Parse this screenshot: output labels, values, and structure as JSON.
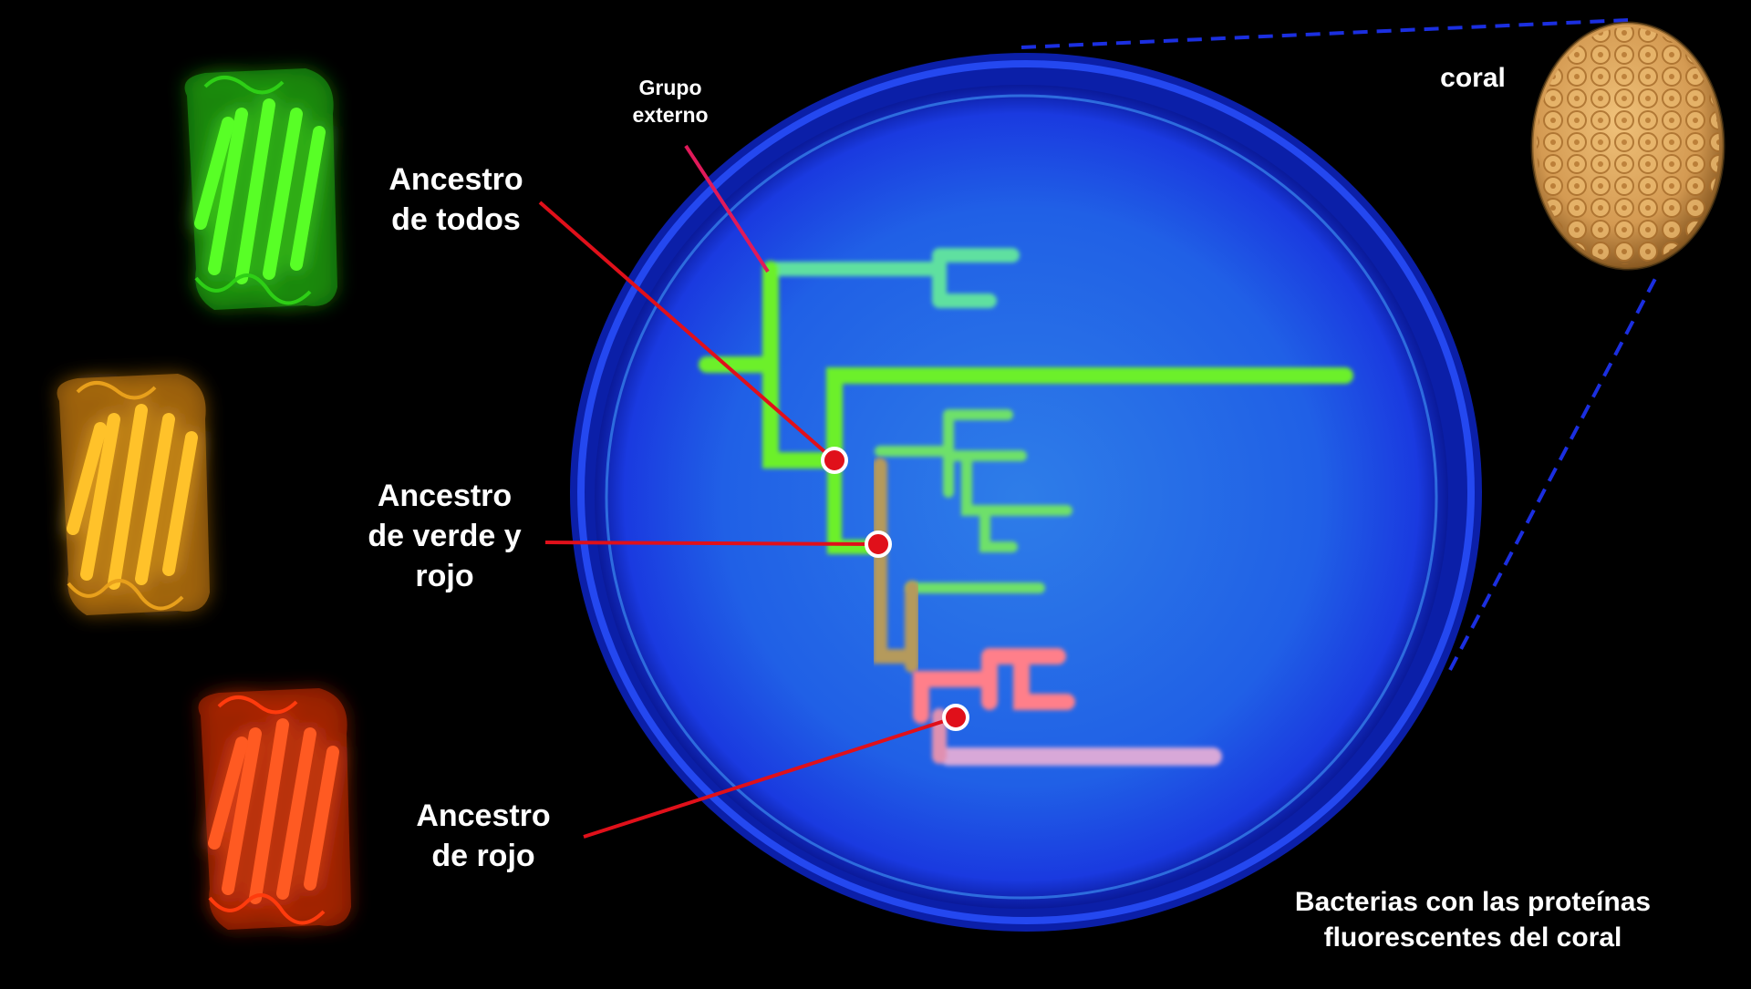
{
  "labels": {
    "outgroup": [
      "Grupo",
      "externo"
    ],
    "ancestor_all": [
      "Ancestro",
      "de todos"
    ],
    "ancestor_green_red": [
      "Ancestro",
      "de verde y",
      "rojo"
    ],
    "ancestor_red": [
      "Ancestro",
      "de rojo"
    ],
    "coral": "coral",
    "caption": [
      "Bacterias con las proteínas",
      "fluorescentes del coral"
    ]
  },
  "colors": {
    "background": "#000000",
    "dish": "#1a57e8",
    "green_protein": "#35e01c",
    "orange_protein": "#f0a51a",
    "red_protein": "#ff4a1a",
    "pointer_line": "#e0101a",
    "ancestor_dot": "#e0101a",
    "coral": "#d9a35a",
    "zoom_lines": "#1b2fe0"
  },
  "proteins": [
    {
      "name": "green-protein-icon",
      "color": "#35e01c"
    },
    {
      "name": "orange-protein-icon",
      "color": "#f0a51a"
    },
    {
      "name": "red-protein-icon",
      "color": "#ff4a1a"
    }
  ]
}
